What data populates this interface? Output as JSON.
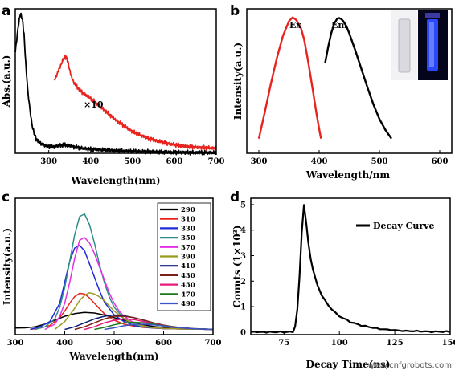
{
  "chart_data": [
    {
      "panel": "a",
      "type": "line",
      "xlabel": "Wavelength(nm)",
      "ylabel": "Abs.(a.u.)",
      "xlim": [
        220,
        700
      ],
      "xticks": [
        300,
        400,
        500,
        600,
        700
      ],
      "annotation": "×10",
      "series": [
        {
          "color": "#000000",
          "x": [
            220,
            228,
            232,
            237,
            241,
            245,
            250,
            255,
            260,
            265,
            270,
            280,
            290,
            300,
            310,
            320,
            330,
            340,
            350,
            360,
            380,
            400,
            450,
            500,
            550,
            600,
            650,
            700
          ],
          "y": [
            0.7,
            0.9,
            0.965,
            0.93,
            0.82,
            0.62,
            0.43,
            0.3,
            0.2,
            0.135,
            0.1,
            0.07,
            0.055,
            0.048,
            0.045,
            0.05,
            0.056,
            0.058,
            0.052,
            0.044,
            0.035,
            0.028,
            0.02,
            0.014,
            0.01,
            0.007,
            0.005,
            0.004
          ]
        },
        {
          "color": "#e8231e",
          "x": [
            313,
            320,
            327,
            333,
            338,
            343,
            348,
            355,
            362,
            370,
            380,
            400,
            420,
            440,
            460,
            480,
            500,
            540,
            580,
            620,
            660,
            700
          ],
          "y": [
            0.5,
            0.55,
            0.6,
            0.64,
            0.67,
            0.66,
            0.6,
            0.52,
            0.48,
            0.45,
            0.42,
            0.38,
            0.33,
            0.28,
            0.23,
            0.19,
            0.15,
            0.1,
            0.07,
            0.05,
            0.04,
            0.035
          ]
        }
      ]
    },
    {
      "panel": "b",
      "type": "line",
      "xlabel": "Wavelength/nm",
      "ylabel": "Intensity(a.u.)",
      "xlim": [
        280,
        620
      ],
      "xticks": [
        300,
        400,
        500,
        600
      ],
      "series": [
        {
          "name": "Ex",
          "color": "#e8231e",
          "x": [
            300,
            310,
            320,
            330,
            340,
            350,
            356,
            362,
            370,
            375,
            380,
            385,
            390,
            395,
            400,
            403
          ],
          "y": [
            0.0,
            0.22,
            0.45,
            0.66,
            0.84,
            0.96,
            0.99,
            0.97,
            0.9,
            0.81,
            0.68,
            0.53,
            0.38,
            0.22,
            0.08,
            0.0
          ]
        },
        {
          "name": "Em",
          "color": "#000000",
          "x": [
            410,
            415,
            420,
            425,
            430,
            433,
            437,
            440,
            445,
            450,
            460,
            470,
            480,
            490,
            500,
            510,
            520
          ],
          "y": [
            0.62,
            0.75,
            0.86,
            0.94,
            0.98,
            0.985,
            0.975,
            0.96,
            0.92,
            0.86,
            0.72,
            0.57,
            0.42,
            0.28,
            0.16,
            0.07,
            0.0
          ]
        }
      ]
    },
    {
      "panel": "c",
      "type": "line",
      "xlabel": "Wavelength(nm)",
      "ylabel": "Intensity(a.u.)",
      "xlim": [
        300,
        700
      ],
      "xticks": [
        300,
        400,
        500,
        600,
        700
      ],
      "series": [
        {
          "name": "290",
          "color": "#000000",
          "x": [
            300,
            320,
            340,
            360,
            380,
            400,
            420,
            440,
            460,
            480,
            500,
            520,
            540,
            560,
            580,
            600,
            620,
            640,
            660,
            680,
            700
          ],
          "y": [
            0.01,
            0.012,
            0.02,
            0.04,
            0.07,
            0.1,
            0.12,
            0.13,
            0.125,
            0.11,
            0.09,
            0.07,
            0.05,
            0.035,
            0.022,
            0.014,
            0.008,
            0.005,
            0.003,
            0.002,
            0.001
          ]
        },
        {
          "name": "310",
          "color": "#e8231e",
          "x": [
            330,
            350,
            370,
            390,
            400,
            410,
            420,
            430,
            440,
            450,
            460,
            470,
            480,
            500,
            520,
            540,
            560,
            580,
            600,
            640,
            680,
            700
          ],
          "y": [
            0.0,
            0.01,
            0.03,
            0.09,
            0.14,
            0.2,
            0.25,
            0.275,
            0.27,
            0.24,
            0.2,
            0.16,
            0.12,
            0.07,
            0.04,
            0.025,
            0.015,
            0.01,
            0.006,
            0.003,
            0.001,
            0.0
          ]
        },
        {
          "name": "330",
          "color": "#1f2bd6",
          "x": [
            330,
            350,
            370,
            390,
            400,
            410,
            420,
            430,
            440,
            450,
            460,
            470,
            480,
            500,
            520,
            540,
            560,
            580,
            600,
            640,
            680,
            700
          ],
          "y": [
            0.0,
            0.02,
            0.06,
            0.2,
            0.36,
            0.52,
            0.62,
            0.64,
            0.6,
            0.5,
            0.4,
            0.3,
            0.21,
            0.11,
            0.06,
            0.03,
            0.018,
            0.01,
            0.006,
            0.003,
            0.001,
            0.0
          ]
        },
        {
          "name": "350",
          "color": "#2e8b8b",
          "x": [
            340,
            360,
            380,
            390,
            400,
            410,
            420,
            430,
            440,
            450,
            460,
            470,
            480,
            490,
            500,
            520,
            540,
            560,
            580,
            600,
            640,
            680,
            700
          ],
          "y": [
            0.0,
            0.02,
            0.08,
            0.17,
            0.32,
            0.52,
            0.72,
            0.86,
            0.88,
            0.8,
            0.66,
            0.5,
            0.36,
            0.25,
            0.17,
            0.08,
            0.04,
            0.02,
            0.012,
            0.007,
            0.003,
            0.001,
            0.0
          ]
        },
        {
          "name": "370",
          "color": "#e52ee5",
          "x": [
            360,
            380,
            390,
            400,
            410,
            420,
            430,
            440,
            450,
            460,
            470,
            480,
            490,
            500,
            510,
            520,
            540,
            560,
            580,
            600,
            640,
            680,
            700
          ],
          "y": [
            0.0,
            0.04,
            0.1,
            0.2,
            0.36,
            0.54,
            0.68,
            0.7,
            0.66,
            0.58,
            0.48,
            0.38,
            0.28,
            0.2,
            0.14,
            0.1,
            0.05,
            0.025,
            0.014,
            0.008,
            0.003,
            0.001,
            0.0
          ]
        },
        {
          "name": "390",
          "color": "#9a9a1e",
          "x": [
            380,
            400,
            420,
            430,
            440,
            450,
            460,
            470,
            480,
            490,
            500,
            520,
            540,
            560,
            580,
            600,
            640,
            680,
            700
          ],
          "y": [
            0.0,
            0.06,
            0.16,
            0.22,
            0.26,
            0.28,
            0.27,
            0.25,
            0.22,
            0.18,
            0.14,
            0.08,
            0.045,
            0.025,
            0.014,
            0.008,
            0.003,
            0.001,
            0.0
          ]
        },
        {
          "name": "410",
          "color": "#0b1f7a",
          "x": [
            400,
            420,
            440,
            460,
            480,
            500,
            520,
            540,
            560,
            580,
            600,
            620,
            640,
            660,
            680,
            700
          ],
          "y": [
            0.0,
            0.02,
            0.05,
            0.08,
            0.1,
            0.11,
            0.105,
            0.09,
            0.07,
            0.05,
            0.032,
            0.02,
            0.012,
            0.006,
            0.003,
            0.0
          ]
        },
        {
          "name": "430",
          "color": "#7a1f14",
          "x": [
            420,
            440,
            460,
            480,
            500,
            520,
            540,
            560,
            580,
            600,
            620,
            640,
            660,
            680,
            700
          ],
          "y": [
            0.0,
            0.02,
            0.05,
            0.08,
            0.1,
            0.1,
            0.09,
            0.07,
            0.05,
            0.033,
            0.02,
            0.012,
            0.006,
            0.003,
            0.0
          ]
        },
        {
          "name": "450",
          "color": "#e6197d",
          "x": [
            440,
            460,
            480,
            500,
            520,
            540,
            560,
            580,
            600,
            620,
            640,
            660,
            680,
            700
          ],
          "y": [
            0.0,
            0.02,
            0.05,
            0.07,
            0.08,
            0.075,
            0.06,
            0.045,
            0.03,
            0.018,
            0.01,
            0.005,
            0.002,
            0.0
          ]
        },
        {
          "name": "470",
          "color": "#1a7a1a",
          "x": [
            460,
            480,
            500,
            520,
            540,
            560,
            580,
            600,
            620,
            640,
            660,
            680,
            700
          ],
          "y": [
            0.0,
            0.015,
            0.035,
            0.05,
            0.055,
            0.05,
            0.04,
            0.028,
            0.018,
            0.01,
            0.005,
            0.002,
            0.0
          ]
        },
        {
          "name": "490",
          "color": "#3c55c8",
          "x": [
            480,
            500,
            520,
            540,
            560,
            580,
            600,
            620,
            640,
            660,
            680,
            700
          ],
          "y": [
            0.0,
            0.012,
            0.028,
            0.038,
            0.04,
            0.035,
            0.026,
            0.017,
            0.01,
            0.005,
            0.002,
            0.0
          ]
        }
      ]
    },
    {
      "panel": "d",
      "type": "line",
      "xlabel": "Decay Time(ns)",
      "ylabel": "Counts (1×10³)",
      "xlim": [
        60,
        150
      ],
      "ylim": [
        -0.1,
        5.25
      ],
      "xticks": [
        75,
        100,
        125,
        150
      ],
      "yticks": [
        0,
        1,
        2,
        3,
        4,
        5
      ],
      "legend": "top-right",
      "series": [
        {
          "name": "Decay Curve",
          "color": "#000000",
          "x": [
            60,
            70,
            75,
            79,
            80,
            81,
            82,
            83,
            84,
            85,
            86,
            87,
            88,
            90,
            92,
            95,
            98,
            100,
            105,
            110,
            115,
            120,
            125,
            130,
            135,
            140,
            145,
            150
          ],
          "y": [
            0.0,
            0.0,
            0.0,
            0.02,
            0.2,
            0.9,
            2.2,
            3.9,
            5.0,
            4.3,
            3.5,
            2.9,
            2.45,
            1.85,
            1.45,
            1.05,
            0.77,
            0.62,
            0.4,
            0.26,
            0.17,
            0.11,
            0.07,
            0.05,
            0.035,
            0.02,
            0.015,
            0.01
          ]
        }
      ]
    }
  ],
  "panel_labels": [
    "a",
    "b",
    "c",
    "d"
  ],
  "inset_photo_colors": {
    "vial_left": "#d9d9df",
    "vial_right_glow": "#2a49ff"
  },
  "watermark": "www.cnfgrobots.com"
}
